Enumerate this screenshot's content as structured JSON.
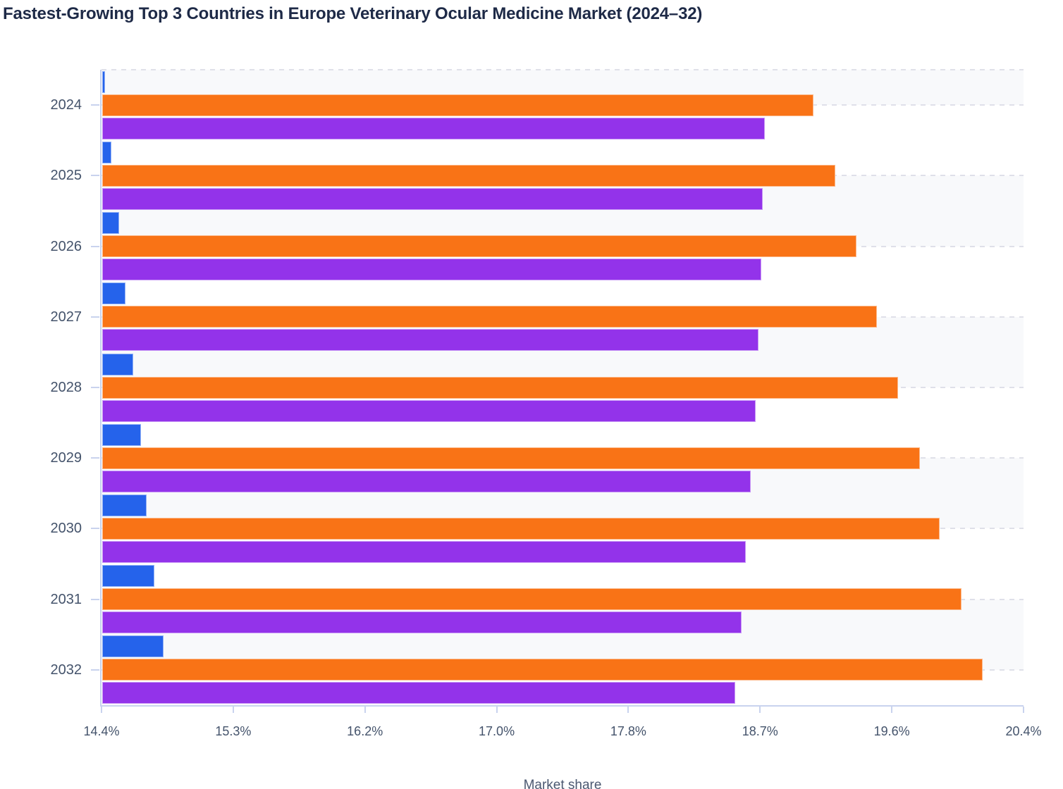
{
  "title": "Fastest-Growing Top 3 Countries in Europe Veterinary Ocular Medicine Market (2024–32)",
  "chart_data": {
    "type": "bar",
    "orientation": "horizontal",
    "title": "Fastest-Growing Top 3 Countries in Europe Veterinary Ocular Medicine Market (2024–32)",
    "categories": [
      "2024",
      "2025",
      "2026",
      "2027",
      "2028",
      "2029",
      "2030",
      "2031",
      "2032"
    ],
    "series": [
      {
        "name": "series-blue",
        "color": "#2563eb",
        "values": [
          14.42,
          14.46,
          14.51,
          14.55,
          14.6,
          14.65,
          14.69,
          14.74,
          14.8
        ]
      },
      {
        "name": "series-orange",
        "color": "#f97316",
        "values": [
          19.03,
          19.17,
          19.31,
          19.44,
          19.58,
          19.72,
          19.85,
          19.99,
          20.13
        ]
      },
      {
        "name": "series-purple",
        "color": "#9333ea",
        "values": [
          18.71,
          18.7,
          18.69,
          18.67,
          18.65,
          18.62,
          18.59,
          18.56,
          18.52
        ]
      }
    ],
    "xlabel": "Market share",
    "ylabel": "",
    "xlim": [
      14.4,
      20.4
    ],
    "x_tick_labels": [
      "14.4%",
      "15.3%",
      "16.2%",
      "17.0%",
      "17.8%",
      "18.7%",
      "19.6%",
      "20.4%"
    ],
    "legend": "none",
    "grid": "horizontal dashed lines at category centers with alternating shaded bands"
  },
  "colors": {
    "title_text": "#1e2a47",
    "axis_label_text": "#44536b",
    "axis_line": "#c9d3ee",
    "grid_dash": "#dfe0e9",
    "band_fill": "#f8f9fb",
    "background": "#ffffff"
  }
}
